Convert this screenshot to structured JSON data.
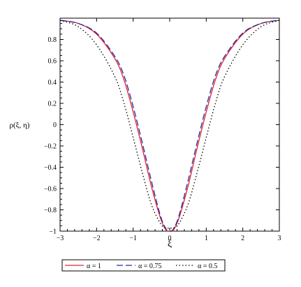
{
  "chart_data": {
    "type": "line",
    "title": "",
    "xlabel": "ξ",
    "ylabel": "ρ(ξ, η)",
    "xlim": [
      -3,
      3
    ],
    "ylim": [
      -1,
      1
    ],
    "xticks": [
      -3,
      -2,
      -1,
      0,
      1,
      2,
      3
    ],
    "yticks": [
      -1,
      -0.8,
      -0.6,
      -0.4,
      -0.2,
      0,
      0.2,
      0.4,
      0.6,
      0.8
    ],
    "xtick_labels": [
      "−3",
      "−2",
      "−1",
      "0",
      "1",
      "2",
      "3"
    ],
    "ytick_labels": [
      "−1",
      "−0.8",
      "−0.6",
      "−0.4",
      "−0.2",
      "0",
      "0.2",
      "0.4",
      "0.6",
      "0.8"
    ],
    "grid": false,
    "legend_position": "bottom",
    "x": [
      -3,
      -2.5,
      -2,
      -1.5,
      -1.25,
      -1,
      -0.75,
      -0.5,
      -0.25,
      -0.1,
      0,
      0.1,
      0.25,
      0.5,
      0.75,
      1,
      1.25,
      1.5,
      2,
      2.5,
      3
    ],
    "series": [
      {
        "name": "α = 1",
        "color": "#e8202a",
        "dash": "solid",
        "values": [
          0.98,
          0.95,
          0.85,
          0.62,
          0.42,
          0.12,
          -0.22,
          -0.58,
          -0.88,
          -0.99,
          -1.0,
          -0.99,
          -0.88,
          -0.58,
          -0.22,
          0.12,
          0.42,
          0.62,
          0.85,
          0.95,
          0.98
        ]
      },
      {
        "name": "α = 0.75",
        "color": "#1f2ea8",
        "dash": "longdash",
        "values": [
          0.98,
          0.95,
          0.86,
          0.64,
          0.46,
          0.17,
          -0.17,
          -0.53,
          -0.86,
          -0.98,
          -1.0,
          -0.98,
          -0.86,
          -0.53,
          -0.17,
          0.17,
          0.46,
          0.64,
          0.86,
          0.95,
          0.98
        ]
      },
      {
        "name": "α = 0.5",
        "color": "#000000",
        "dash": "dot",
        "values": [
          0.98,
          0.92,
          0.75,
          0.45,
          0.2,
          -0.12,
          -0.45,
          -0.75,
          -0.93,
          -0.97,
          -0.97,
          -0.97,
          -0.93,
          -0.75,
          -0.45,
          -0.12,
          0.2,
          0.45,
          0.75,
          0.92,
          0.98
        ]
      }
    ]
  }
}
